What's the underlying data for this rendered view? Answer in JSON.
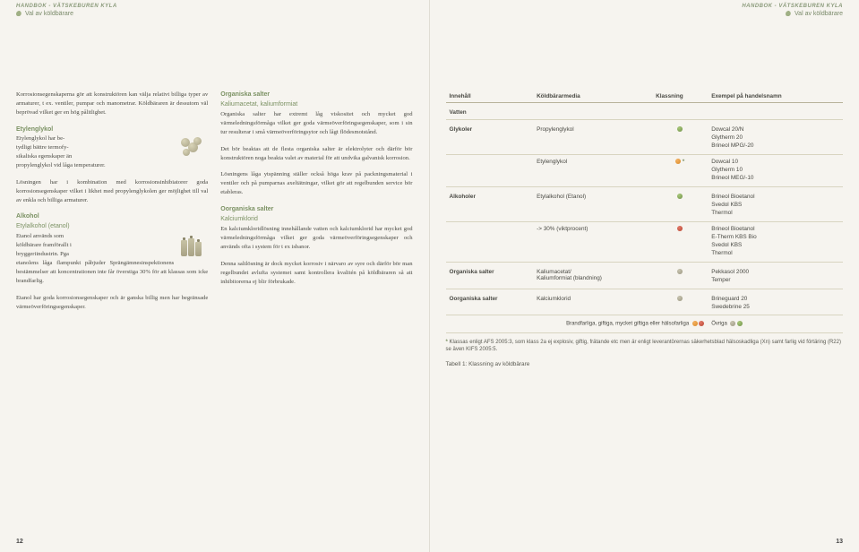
{
  "header": {
    "title": "HANDBOK - VÄTSKEBUREN KYLA",
    "breadcrumb": "Val av köldbärare"
  },
  "left": {
    "col1": {
      "p1": "Korrosionsegenskaperna gör att konstruktören kan välja relativt billiga typer av armaturer, t ex. ventiler, pumpar och manometrar. Köldbäraren är dessutom väl beprövad vilket ger en hög pålitlighet.",
      "h1": "Etylenglykol",
      "p2a": "Etylenglykol har be-",
      "p2b": "tydligt bättre termofy-",
      "p2c": "sikaliska egenskaper än",
      "p2d": "propylenglykol vid låga temperaturer.",
      "p3": "Lösningen har i kombination med korrosionsinhibiatorer goda korrosionsegenskaper vilket i likhet med propylenglykolen ger möjlighet till val av enkla och billiga armaturer.",
      "h2": "Alkohol",
      "h2sub": "Etylalkohol (etanol)",
      "p4a": "Etanol används som",
      "p4b": "köldbärare framförallt i",
      "p4c": "bryggeriindustrin. Pga",
      "p4d": "etanolens låga flampunkt påbjuder Sprängämnesinspektionens bestämmelser att koncentrationen inte får överstiga 30% för att klassas som icke brandfarlig.",
      "p5": "Etanol har goda korrosionsegenskaper och är ganska billig men har begränsade värmeöverföringsegenskaper."
    },
    "col2": {
      "h1": "Organiska salter",
      "h1sub": "Kaliumacetat, kaliumformiat",
      "p1": "Organiska salter har extremt låg viskositet och mycket god värmeledningsförmåga vilket ger goda värmeöverföringsegenskaper, som i sin tur resulterar i små värmeöverföringsytor och lågt flödesmotstånd.",
      "p2": "Det bör beaktas att de flesta organiska salter är elektrolyter och därför bör konstruktören noga beakta valet av material för att undvika galvanisk korrosion.",
      "p3": "Lösningens låga ytspänning ställer också höga krav på packningsmaterial i ventiler och på pumparnas axeltätningar, vilket gör att regelbunden service bör etableras.",
      "h2": "Oorganiska salter",
      "h2sub": "Kalciumklorid",
      "p4": "En kalciumkloridlösning innehållande vatten och kalciumklorid har mycket god värmeledningsförmåga vilket ger goda värmeöverföringsegenskaper och används ofta i system för t ex isbanor.",
      "p5": "Denna saltlösning är dock mycket korrosiv i närvaro av syre och därför bör man regelbundet avlufta systemet samt kontrollera kvalitén på köldbäraren så att inhibitorerna ej blir förbrukade."
    },
    "pagenum": "12"
  },
  "right": {
    "columns": [
      "Innehåll",
      "Köldbärarmedia",
      "Klassning",
      "Exempel på handelsnamn"
    ],
    "rows": [
      {
        "cat": "Vatten",
        "media": "",
        "dot": "",
        "ex": ""
      },
      {
        "cat": "Glykoler",
        "media": "Propylenglykol",
        "dot": "green",
        "ex": "Dowcal 20/N\nGlytherm 20\nBrineol MPG/-20"
      },
      {
        "cat": "",
        "media": "Etylenglykol",
        "dot": "orange",
        "star": true,
        "ex": "Dowcal 10\nGlytherm 10\nBrineol MEG/-10"
      },
      {
        "cat": "Alkoholer",
        "media": "Etylalkohol (Etanol)",
        "dot": "green",
        "ex": "Brineol Bioetanol\nSvedol KBS\nThermol"
      },
      {
        "cat": "",
        "media": "-> 30% (viktprocent)",
        "dot": "red",
        "ex": "Brineol Bioetanol\nE-Therm KBS Bio\nSvedol KBS\nThermol"
      },
      {
        "cat": "Organiska salter",
        "media": "Kaliumacetat/\nKaliumformiat (blandning)",
        "dot": "grey",
        "ex": "Pekkasol 2000\nTemper"
      },
      {
        "cat": "Oorganiska salter",
        "media": "Kalciumklorid",
        "dot": "grey",
        "ex": "Brineguard 20\nSwedebrine 25"
      }
    ],
    "legend": "Brandfarliga, giftiga, mycket giftiga eller hälsofarliga",
    "legend2": "Övriga",
    "footnote": "Klassas enligt AFS 2005:3, som klass 2a ej explosiv, giftig, frätande etc men är enligt leverantörernas säkerhetsblad hälsoskadliga (Xn) samt farlig vid förtäring (R22) se även KIFS 2005:5.",
    "caption": "Tabell 1: Klassning av köldbärare",
    "pagenum": "13"
  }
}
